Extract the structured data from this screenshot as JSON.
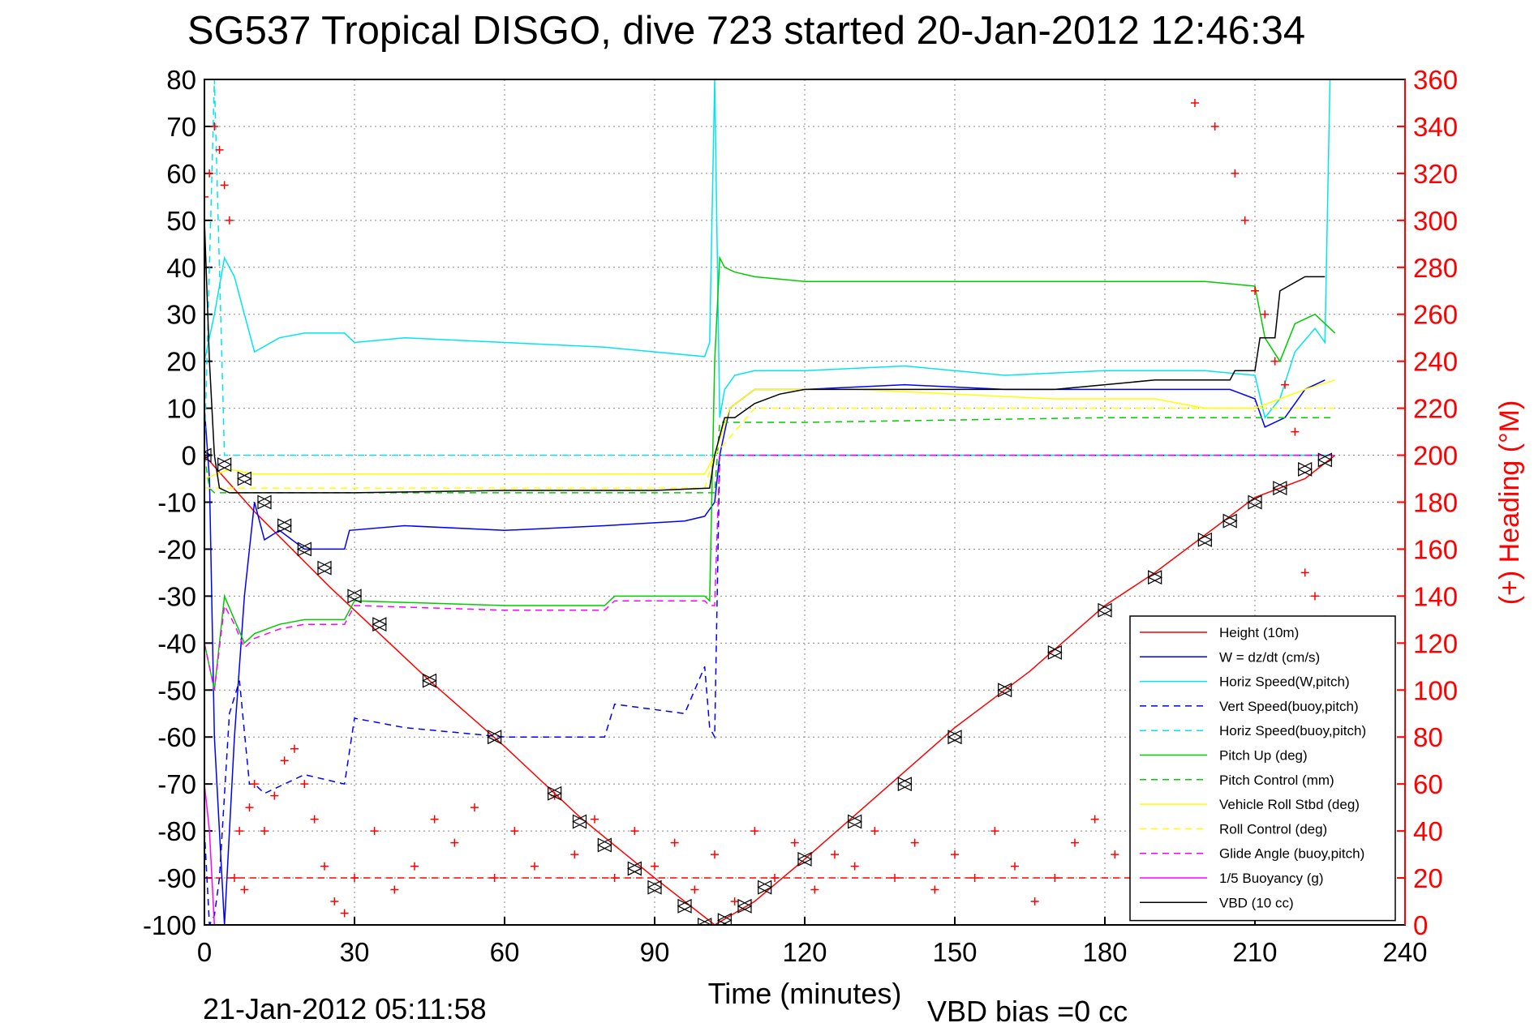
{
  "chart_data": {
    "type": "line",
    "title": "SG537 Tropical DISGO, dive 723 started 20-Jan-2012 12:46:34",
    "xlabel": "Time (minutes)",
    "ylabel_right": "(+) Heading (°M)",
    "footer_left": "21-Jan-2012 05:11:58",
    "footer_right": "VBD bias =0 cc",
    "xlim": [
      0,
      240
    ],
    "ylim": [
      -100,
      80
    ],
    "ylim_right": [
      0,
      360
    ],
    "x_ticks": [
      "0",
      "30",
      "60",
      "90",
      "120",
      "150",
      "180",
      "210",
      "240"
    ],
    "y_ticks": [
      "80",
      "70",
      "60",
      "50",
      "40",
      "30",
      "20",
      "10",
      "0",
      "-10",
      "-20",
      "-30",
      "-40",
      "-50",
      "-60",
      "-70",
      "-80",
      "-90",
      "-100"
    ],
    "y_ticks_right": [
      "360",
      "340",
      "320",
      "300",
      "280",
      "260",
      "240",
      "220",
      "200",
      "180",
      "160",
      "140",
      "120",
      "100",
      "80",
      "60",
      "40",
      "20",
      "0"
    ],
    "grid": true,
    "legend_position": "bottom-right",
    "series": [
      {
        "name": "Height (10m)",
        "color": "#ff0000",
        "style": "solid",
        "x": [
          0,
          10,
          25,
          45,
          60,
          75,
          90,
          102,
          110,
          120,
          135,
          150,
          165,
          180,
          190,
          200,
          210,
          220,
          226
        ],
        "y": [
          0,
          -12,
          -28,
          -48,
          -62,
          -77,
          -90,
          -100,
          -95,
          -86,
          -72,
          -58,
          -46,
          -32,
          -25,
          -17,
          -9,
          -5,
          0
        ]
      },
      {
        "name": "W = dz/dt (cm/s)",
        "color": "#0000ff",
        "style": "solid",
        "x": [
          0,
          1,
          2,
          4,
          6,
          8,
          10,
          12,
          15,
          20,
          28,
          29,
          40,
          60,
          80,
          96,
          100,
          102,
          103,
          105,
          110,
          120,
          140,
          160,
          180,
          200,
          205,
          210,
          212,
          216,
          220,
          224
        ],
        "y": [
          10,
          -5,
          -60,
          -100,
          -60,
          -30,
          -10,
          -18,
          -16,
          -20,
          -20,
          -16,
          -15,
          -16,
          -15,
          -14,
          -13,
          -10,
          0,
          10,
          14,
          14,
          15,
          14,
          14,
          14,
          14,
          12,
          6,
          8,
          14,
          16
        ]
      },
      {
        "name": "Horiz Speed(W,pitch)",
        "color": "#00e5ee",
        "style": "solid",
        "x": [
          0,
          2,
          4,
          6,
          8,
          10,
          15,
          20,
          28,
          30,
          40,
          60,
          80,
          100,
          101,
          102,
          103,
          104,
          106,
          110,
          120,
          140,
          160,
          180,
          200,
          210,
          212,
          215,
          218,
          222,
          224,
          225
        ],
        "y": [
          20,
          30,
          42,
          38,
          30,
          22,
          25,
          26,
          26,
          24,
          25,
          24,
          23,
          21,
          24,
          80,
          8,
          14,
          17,
          18,
          18,
          19,
          17,
          18,
          18,
          17,
          8,
          12,
          22,
          27,
          24,
          80
        ]
      },
      {
        "name": "Vert Speed(buoy,pitch)",
        "color": "#0000ff",
        "style": "dashed",
        "x": [
          0,
          1,
          2,
          3,
          5,
          7,
          9,
          10,
          12,
          20,
          28,
          30,
          40,
          60,
          80,
          82,
          96,
          100,
          101,
          102,
          103,
          110,
          120,
          140,
          160,
          180,
          200,
          210,
          212,
          216,
          220,
          224
        ],
        "y": [
          -80,
          -100,
          -98,
          -90,
          -55,
          -48,
          -70,
          -70,
          -72,
          -68,
          -70,
          -56,
          -58,
          -60,
          -60,
          -53,
          -55,
          -45,
          -58,
          -60,
          0,
          0,
          0,
          0,
          0,
          0,
          0,
          0,
          0,
          0,
          0,
          0
        ]
      },
      {
        "name": "Horiz Speed(buoy,pitch)",
        "color": "#00e5ee",
        "style": "dashed",
        "x": [
          0,
          2,
          4,
          226
        ],
        "y": [
          0,
          80,
          0,
          0
        ]
      },
      {
        "name": "Pitch Up (deg)",
        "color": "#00cc00",
        "style": "solid",
        "x": [
          0,
          2,
          4,
          6,
          8,
          10,
          15,
          20,
          28,
          30,
          60,
          80,
          82,
          100,
          101,
          102,
          103,
          104,
          106,
          110,
          120,
          140,
          160,
          180,
          200,
          210,
          212,
          215,
          218,
          222,
          226
        ],
        "y": [
          -40,
          -50,
          -30,
          -35,
          -40,
          -38,
          -36,
          -35,
          -35,
          -31,
          -32,
          -32,
          -30,
          -30,
          -31,
          20,
          42,
          40,
          39,
          38,
          37,
          37,
          37,
          37,
          37,
          36,
          25,
          20,
          28,
          30,
          26
        ]
      },
      {
        "name": "Pitch Control (mm)",
        "color": "#00cc00",
        "style": "dashed",
        "x": [
          0,
          1,
          2,
          40,
          80,
          100,
          101,
          102,
          103,
          120,
          150,
          180,
          200,
          226
        ],
        "y": [
          0,
          -7,
          -8,
          -8,
          -8,
          -8,
          -8,
          -8,
          7,
          7,
          7.5,
          8,
          8,
          8
        ]
      },
      {
        "name": "Vehicle Roll Stbd (deg)",
        "color": "#ffff00",
        "style": "solid",
        "x": [
          0,
          5,
          10,
          30,
          40,
          60,
          80,
          100,
          102,
          105,
          110,
          130,
          150,
          170,
          190,
          200,
          210,
          215,
          220,
          226
        ],
        "y": [
          -5,
          -3,
          -4,
          -4,
          -4,
          -4,
          -4,
          -4,
          0,
          10,
          14,
          14,
          13,
          12,
          12,
          10,
          10,
          12,
          14,
          16
        ]
      },
      {
        "name": "Roll Control (deg)",
        "color": "#ffff00",
        "style": "dashed",
        "x": [
          0,
          10,
          50,
          100,
          102,
          110,
          150,
          200,
          226
        ],
        "y": [
          -7,
          -7,
          -7,
          -7,
          0,
          10,
          10,
          10,
          10
        ]
      },
      {
        "name": "Glide Angle (buoy,pitch)",
        "color": "#ff00ff",
        "style": "dashed",
        "x": [
          0,
          2,
          4,
          6,
          8,
          10,
          15,
          20,
          28,
          30,
          60,
          80,
          82,
          100,
          101,
          102,
          103,
          226
        ],
        "y": [
          -40,
          -50,
          -32,
          -36,
          -41,
          -39,
          -37,
          -36,
          -36,
          -32,
          -33,
          -33,
          -31,
          -31,
          -32,
          -32,
          0,
          0
        ]
      },
      {
        "name": "1/5 Buoyancy (g)",
        "color": "#ff00ff",
        "style": "solid",
        "x": [
          0,
          1,
          2,
          3
        ],
        "y": [
          -70,
          -80,
          -100,
          -100
        ]
      },
      {
        "name": "VBD (10 cc)",
        "color": "#000000",
        "style": "solid",
        "x": [
          0,
          1,
          2,
          3,
          5,
          30,
          60,
          90,
          101,
          102,
          104,
          106,
          110,
          115,
          120,
          150,
          170,
          180,
          190,
          200,
          205,
          206,
          210,
          211,
          214,
          215,
          220,
          224
        ],
        "y": [
          50,
          20,
          0,
          -7,
          -8,
          -8,
          -7.5,
          -7.5,
          -7,
          0,
          8,
          8,
          11,
          13,
          14,
          14,
          14,
          15,
          16,
          16,
          16,
          18,
          18,
          25,
          25,
          35,
          38,
          38
        ]
      }
    ],
    "heading_series": {
      "name": "(+) Heading (°M)",
      "color": "#ff0000",
      "x": [
        0,
        1,
        2,
        3,
        4,
        5,
        6,
        7,
        8,
        9,
        10,
        12,
        14,
        16,
        18,
        20,
        22,
        24,
        26,
        28,
        30,
        34,
        38,
        42,
        46,
        50,
        54,
        58,
        62,
        66,
        70,
        74,
        78,
        82,
        86,
        90,
        94,
        98,
        102,
        106,
        110,
        114,
        118,
        122,
        126,
        130,
        134,
        138,
        142,
        146,
        150,
        154,
        158,
        162,
        166,
        170,
        174,
        178,
        182,
        186,
        190,
        194,
        198,
        202,
        206,
        208,
        210,
        212,
        214,
        216,
        218,
        220,
        222,
        224
      ],
      "y": [
        310,
        320,
        340,
        330,
        315,
        300,
        20,
        40,
        15,
        50,
        60,
        40,
        55,
        70,
        75,
        60,
        45,
        25,
        10,
        5,
        20,
        40,
        15,
        25,
        45,
        35,
        50,
        20,
        40,
        25,
        55,
        30,
        45,
        20,
        40,
        25,
        35,
        15,
        30,
        10,
        40,
        20,
        35,
        15,
        30,
        25,
        40,
        20,
        35,
        15,
        30,
        20,
        40,
        25,
        10,
        20,
        35,
        45,
        30,
        15,
        25,
        40,
        350,
        340,
        320,
        300,
        270,
        260,
        240,
        230,
        210,
        150,
        140,
        130
      ]
    },
    "markers": {
      "x": [
        0,
        4,
        8,
        12,
        16,
        20,
        24,
        30,
        35,
        45,
        58,
        70,
        75,
        80,
        86,
        90,
        96,
        100,
        104,
        108,
        112,
        120,
        130,
        140,
        150,
        160,
        170,
        180,
        190,
        200,
        205,
        210,
        215,
        220,
        224
      ],
      "y": [
        0,
        -2,
        -5,
        -10,
        -15,
        -20,
        -24,
        -30,
        -36,
        -48,
        -60,
        -72,
        -78,
        -83,
        -88,
        -92,
        -96,
        -100,
        -99,
        -96,
        -92,
        -86,
        -78,
        -70,
        -60,
        -50,
        -42,
        -33,
        -26,
        -18,
        -14,
        -10,
        -7,
        -3,
        -1
      ]
    },
    "ref_line": {
      "y_right": 20,
      "color": "#ff0000",
      "style": "dashed"
    }
  }
}
